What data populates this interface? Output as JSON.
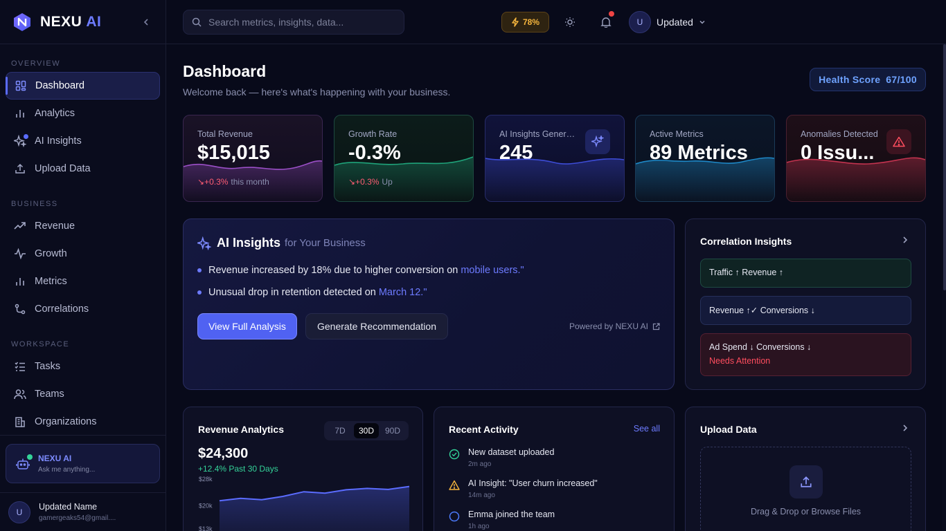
{
  "brand": {
    "name": "NEXU",
    "ai": "AI"
  },
  "sidebar": {
    "sections": [
      {
        "title": "OVERVIEW",
        "items": [
          {
            "label": "Dashboard",
            "icon": "grid-icon",
            "active": true
          },
          {
            "label": "Analytics",
            "icon": "bar-chart-icon"
          },
          {
            "label": "AI Insights",
            "icon": "sparkles-icon",
            "dot": true
          },
          {
            "label": "Upload Data",
            "icon": "upload-icon"
          }
        ]
      },
      {
        "title": "BUSINESS",
        "items": [
          {
            "label": "Revenue",
            "icon": "trending-up-icon"
          },
          {
            "label": "Growth",
            "icon": "pulse-icon"
          },
          {
            "label": "Metrics",
            "icon": "bar-chart-icon"
          },
          {
            "label": "Correlations",
            "icon": "branch-icon"
          }
        ]
      },
      {
        "title": "WORKSPACE",
        "items": [
          {
            "label": "Tasks",
            "icon": "list-check-icon"
          },
          {
            "label": "Teams",
            "icon": "users-icon"
          },
          {
            "label": "Organizations",
            "icon": "building-icon"
          }
        ]
      }
    ],
    "assistant": {
      "title": "NEXU AI",
      "subtitle": "Ask me anything..."
    },
    "user": {
      "initial": "U",
      "name": "Updated Name",
      "email": "gamergeaks54@gmail...."
    }
  },
  "topbar": {
    "search_placeholder": "Search metrics, insights, data...",
    "credits": "78%",
    "user_initial": "U",
    "user_name": "Updated"
  },
  "page": {
    "title": "Dashboard",
    "subtitle": "Welcome back — here's what's happening with your business.",
    "health_label": "Health Score",
    "health_value": "67/100"
  },
  "kpis": [
    {
      "label": "Total Revenue",
      "value": "$15,015",
      "delta": "↘+0.3%",
      "delta_note": "this month",
      "color": "#9b4fc7"
    },
    {
      "label": "Growth Rate",
      "value": "-0.3%",
      "delta": "↘+0.3%",
      "delta_note": "Up",
      "color": "#1fa37a"
    },
    {
      "label": "AI Insights Genera...",
      "value": "245",
      "color": "#3d4cd6"
    },
    {
      "label": "Active Metrics",
      "value": "89 Metrics",
      "color": "#1e88c7"
    },
    {
      "label": "Anomalies Detected",
      "value": "0 Issu...",
      "color": "#c2334f"
    }
  ],
  "ai_insights": {
    "title": "AI Insights",
    "subtitle": "for Your Business",
    "bullets": [
      {
        "text": "Revenue increased by 18% due to higher conversion on",
        "link": "mobile users.\""
      },
      {
        "text": "Unusual drop in retention detected on",
        "link": "March 12.\""
      }
    ],
    "primary_button": "View Full Analysis",
    "secondary_button": "Generate Recommendation",
    "powered": "Powered by NEXU AI"
  },
  "correlations": {
    "title": "Correlation Insights",
    "items": [
      {
        "text": "Traffic ↑  Revenue ↑"
      },
      {
        "text": "Revenue ↑✓  Conversions ↓"
      },
      {
        "text": "Ad Spend ↓  Conversions ↓",
        "warning": "Needs Attention"
      }
    ]
  },
  "revenue": {
    "title": "Revenue Analytics",
    "ranges": [
      "7D",
      "30D",
      "90D"
    ],
    "active_range": "30D",
    "value": "$24,300",
    "delta": "+12.4% Past 30 Days"
  },
  "chart_data": {
    "type": "area",
    "title": "Revenue Analytics",
    "yticks": [
      "$28k",
      "$20k",
      "$13k"
    ],
    "ylim": [
      13000,
      28000
    ],
    "values": [
      21500,
      22200,
      21800,
      22800,
      24200,
      23800,
      24800,
      25200,
      24900,
      25800
    ],
    "grid": false
  },
  "activity": {
    "title": "Recent Activity",
    "see_all": "See all",
    "items": [
      {
        "text": "New dataset uploaded",
        "time": "2m ago",
        "icon": "check-circle-icon"
      },
      {
        "text": "AI Insight: \"User churn increased\"",
        "time": "14m ago",
        "icon": "warning-icon"
      },
      {
        "text": "Emma joined the team",
        "time": "1h ago",
        "icon": "circle-icon"
      }
    ]
  },
  "upload": {
    "title": "Upload Data",
    "drop_text": "Drag & Drop or Browse Files"
  }
}
